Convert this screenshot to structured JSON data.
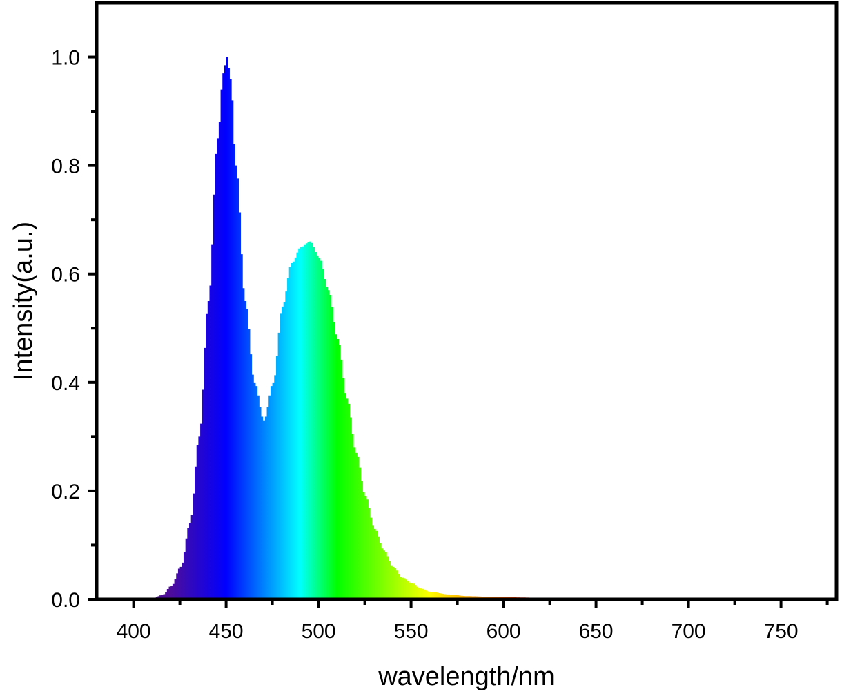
{
  "chart_data": {
    "type": "area",
    "title": "",
    "xlabel": "wavelength/nm",
    "ylabel": "Intensity(a.u.)",
    "xlim": [
      380,
      780
    ],
    "ylim": [
      0,
      1.1
    ],
    "x_ticks": [
      400,
      450,
      500,
      550,
      600,
      650,
      700,
      750
    ],
    "x_tick_labels": [
      "400",
      "450",
      "500",
      "550",
      "600",
      "650",
      "700",
      "750"
    ],
    "y_ticks": [
      0.0,
      0.2,
      0.4,
      0.6,
      0.8,
      1.0
    ],
    "y_tick_labels": [
      "0.0",
      "0.2",
      "0.4",
      "0.6",
      "0.8",
      "1.0"
    ],
    "fill": "wavelength-colored spectrum",
    "grid": false,
    "series": [
      {
        "x": [
          385,
          390,
          395,
          400,
          405,
          410,
          415,
          420,
          425,
          430,
          435,
          440,
          445,
          448,
          450,
          452,
          455,
          460,
          465,
          470,
          475,
          480,
          485,
          490,
          495,
          500,
          505,
          510,
          515,
          520,
          525,
          530,
          535,
          540,
          545,
          550,
          555,
          560,
          570,
          580,
          590,
          600,
          620,
          640,
          660,
          670,
          680,
          700,
          720,
          750,
          770
        ],
        "values": [
          0.0,
          0.0,
          0.0,
          0.0,
          0.0,
          0.002,
          0.008,
          0.025,
          0.06,
          0.14,
          0.3,
          0.55,
          0.85,
          0.97,
          1.0,
          0.96,
          0.8,
          0.55,
          0.4,
          0.33,
          0.4,
          0.54,
          0.62,
          0.65,
          0.66,
          0.63,
          0.57,
          0.48,
          0.37,
          0.27,
          0.19,
          0.13,
          0.09,
          0.06,
          0.04,
          0.03,
          0.02,
          0.014,
          0.009,
          0.006,
          0.005,
          0.004,
          0.003,
          0.003,
          0.002,
          0.001,
          0.0,
          0.0,
          0.0,
          0.0,
          0.0
        ]
      }
    ]
  }
}
